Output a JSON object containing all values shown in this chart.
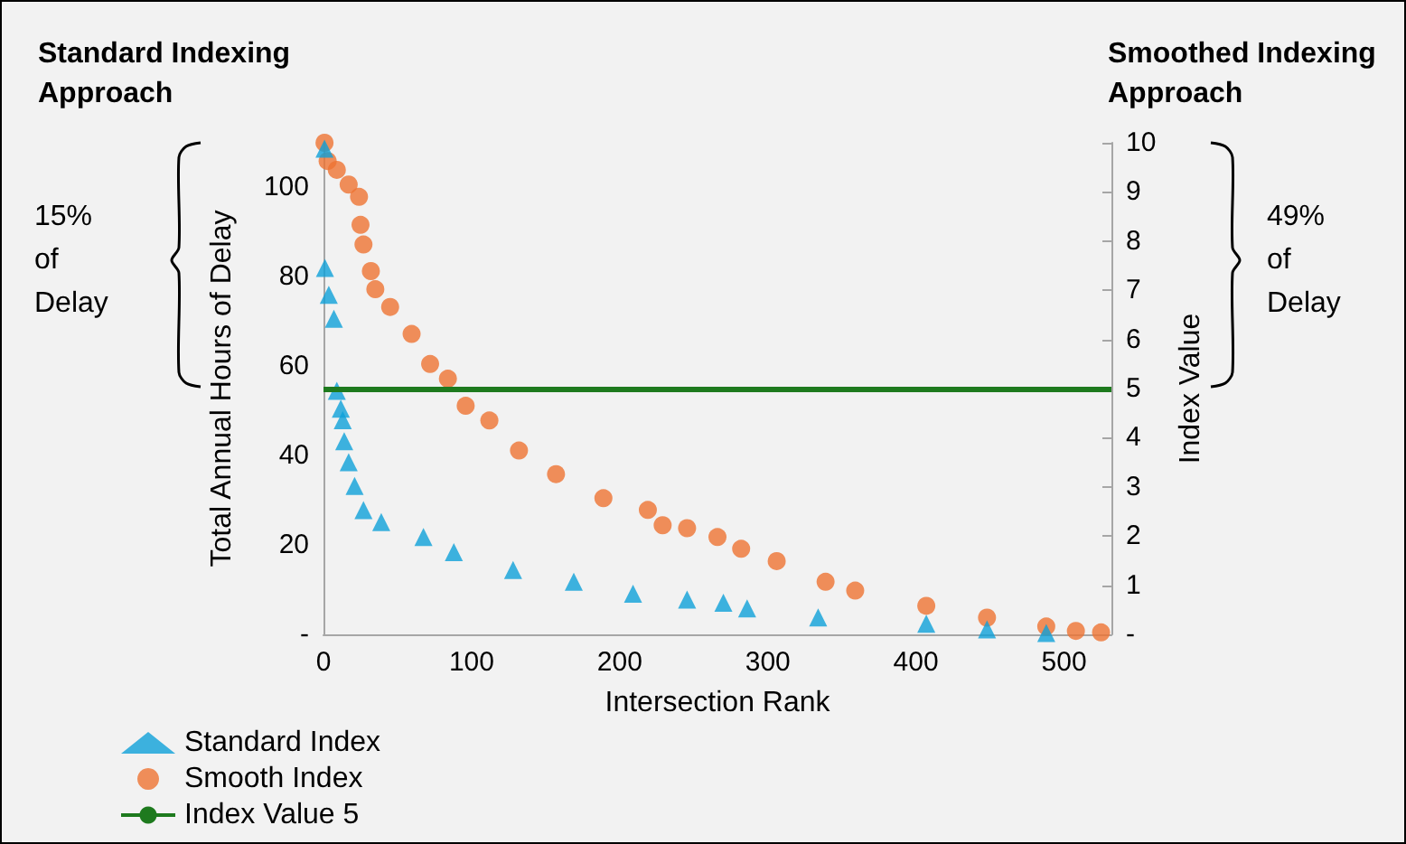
{
  "chart_data": {
    "type": "scatter",
    "xlabel": "Intersection Rank",
    "ylabel": "Total Annual Hours of Delay",
    "y2label": "Index Value",
    "annotations": [
      "Standard Indexing Approach",
      "Smoothed Indexing Approach",
      "15% of Delay",
      "49% of Delay"
    ],
    "xlim": [
      0,
      532
    ],
    "xticks": [
      0,
      100,
      200,
      300,
      400,
      500
    ],
    "ylim": [
      0,
      110
    ],
    "yticks": [
      {
        "value": 0,
        "label": "-"
      },
      20,
      40,
      60,
      80,
      100
    ],
    "y2lim": [
      0,
      10
    ],
    "y2ticks": [
      {
        "value": 0,
        "label": "-"
      },
      1,
      2,
      3,
      4,
      5,
      6,
      7,
      8,
      9,
      10
    ],
    "series": [
      {
        "name": "Standard Index",
        "color": "#0ea0d8",
        "marker": "triangle",
        "x": [
          0.7,
          1,
          3.6,
          7,
          9,
          11.7,
          13,
          14,
          17,
          21,
          27,
          39,
          67.5,
          88,
          128,
          169,
          209,
          245.5,
          270,
          286,
          334,
          407,
          448,
          488
        ],
        "values": [
          108.7,
          82,
          76,
          70.6,
          54.5,
          50.5,
          47.9,
          43.2,
          38.5,
          33.2,
          27.8,
          25.1,
          21.8,
          18.4,
          14.4,
          11.8,
          9.1,
          7.8,
          7.1,
          5.8,
          3.8,
          2.4,
          1.1,
          0.3
        ]
      },
      {
        "name": "Smooth Index",
        "color": "#ed7332",
        "marker": "circle",
        "axis": "y2",
        "x": [
          0.7,
          2.8,
          9,
          17,
          24,
          25,
          27,
          32,
          35,
          45,
          59.5,
          72,
          84,
          96,
          112,
          132,
          157,
          189,
          219,
          229,
          245.5,
          266,
          282,
          306,
          339,
          359,
          407,
          448,
          488,
          508,
          525
        ],
        "values": [
          10,
          9.63,
          9.45,
          9.15,
          8.9,
          8.33,
          7.93,
          7.39,
          7.02,
          6.66,
          6.11,
          5.5,
          5.2,
          4.65,
          4.35,
          3.74,
          3.26,
          2.77,
          2.53,
          2.22,
          2.16,
          1.98,
          1.74,
          1.49,
          1.07,
          0.89,
          0.58,
          0.34,
          0.16,
          0.07,
          0.04
        ]
      }
    ],
    "ref_lines": [
      {
        "axis": "y2",
        "value": 5,
        "label": "Index Value 5",
        "color": "#1e7a1e",
        "line_style": "solid"
      }
    ],
    "grid": false,
    "legend": "bottom left"
  }
}
